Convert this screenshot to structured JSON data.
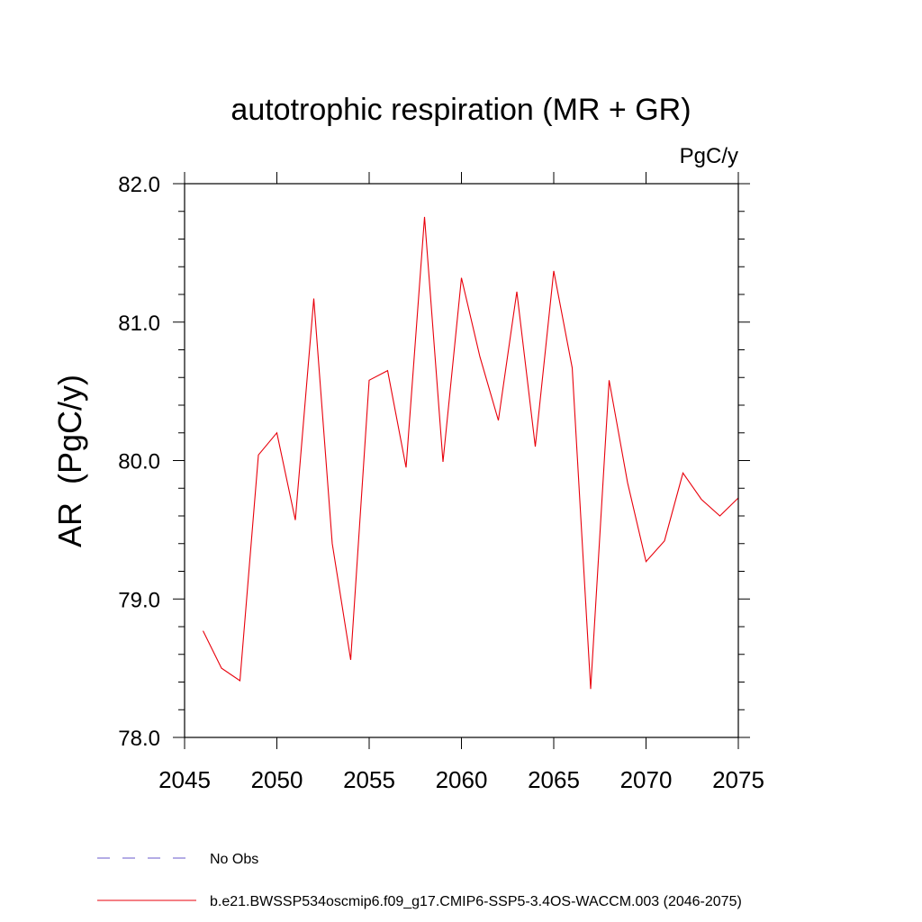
{
  "chart_data": {
    "type": "line",
    "title": "autotrophic respiration (MR + GR)",
    "units": "PgC/y",
    "ylabel": "AR  (PgC/y)",
    "xlabel": "",
    "xlim": [
      2045,
      2075
    ],
    "ylim": [
      78.0,
      82.0
    ],
    "x_ticks": [
      2045,
      2050,
      2055,
      2060,
      2065,
      2070,
      2075
    ],
    "x_tick_labels": [
      "2045",
      "2050",
      "2055",
      "2060",
      "2065",
      "2070",
      "2075"
    ],
    "y_ticks": [
      78.0,
      79.0,
      80.0,
      81.0,
      82.0
    ],
    "y_tick_labels": [
      "78.0",
      "79.0",
      "80.0",
      "81.0",
      "82.0"
    ],
    "grid": false,
    "legend_position": "bottom-left",
    "series": [
      {
        "name": "b.e21.BWSSP534oscmip6.f09_g17.CMIP6-SSP5-3.4OS-WACCM.003 (2046-2075)",
        "color": "#e8000b",
        "x": [
          2046,
          2047,
          2048,
          2049,
          2050,
          2051,
          2052,
          2053,
          2054,
          2055,
          2056,
          2057,
          2058,
          2059,
          2060,
          2061,
          2062,
          2063,
          2064,
          2065,
          2066,
          2067,
          2068,
          2069,
          2070,
          2071,
          2072,
          2073,
          2074,
          2075
        ],
        "y": [
          78.77,
          78.5,
          78.41,
          80.04,
          80.2,
          79.57,
          81.17,
          79.4,
          78.56,
          80.58,
          80.65,
          79.95,
          81.76,
          79.99,
          81.32,
          80.75,
          80.29,
          81.22,
          80.1,
          81.37,
          80.67,
          78.35,
          80.58,
          79.84,
          79.27,
          79.42,
          79.91,
          79.72,
          79.6,
          79.73
        ]
      }
    ],
    "legend": [
      {
        "label": "No Obs",
        "color": "#6a5acd",
        "style": "dashed"
      },
      {
        "label": "b.e21.BWSSP534oscmip6.f09_g17.CMIP6-SSP5-3.4OS-WACCM.003 (2046-2075)",
        "color": "#e8000b",
        "style": "solid"
      }
    ]
  }
}
